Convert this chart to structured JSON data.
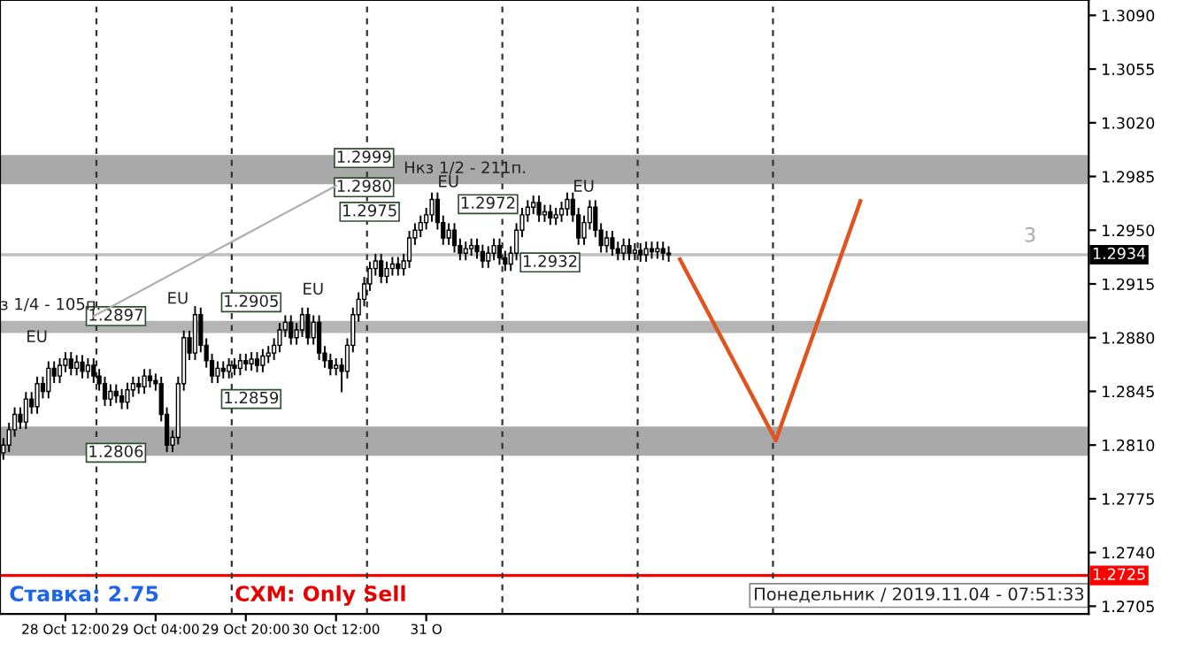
{
  "chart_data": {
    "type": "candlestick",
    "categories": [
      null,
      null,
      null,
      null,
      null,
      null,
      null,
      null,
      null,
      null,
      null,
      "28 Oct 12:00",
      null,
      null,
      null,
      null,
      null,
      null,
      null,
      null,
      null,
      null,
      null,
      null,
      null,
      null,
      null,
      "29 Oct 04:00",
      null,
      null,
      null,
      null,
      null,
      null,
      null,
      null,
      null,
      null,
      null,
      null,
      null,
      null,
      null,
      "29 Oct 20:00",
      null,
      null,
      null,
      null,
      null,
      null,
      null,
      null,
      null,
      null,
      null,
      null,
      null,
      null,
      null,
      "30 Oct 12:00",
      null,
      null,
      null,
      null,
      null,
      null,
      null,
      null,
      null,
      null,
      null,
      null,
      null,
      null,
      null,
      "31 O",
      null,
      null,
      null,
      null,
      null,
      null,
      null,
      null,
      null,
      null,
      null,
      null,
      null,
      null,
      null,
      null,
      null,
      null,
      null,
      null,
      null,
      null,
      null,
      null,
      null,
      null,
      null,
      null,
      null,
      null,
      null,
      null,
      null,
      null,
      null,
      null,
      null,
      null,
      null,
      null,
      null,
      null,
      null,
      null,
      null,
      null,
      null,
      null,
      null,
      null,
      null,
      null,
      null,
      null,
      null,
      null,
      null,
      null,
      null,
      null,
      null,
      null,
      null,
      null,
      null,
      null,
      null,
      null,
      null,
      null,
      null,
      null,
      null,
      null,
      null,
      null,
      null,
      null,
      null,
      null,
      null,
      null,
      null,
      null,
      null,
      null,
      null,
      null,
      null,
      null,
      null,
      null,
      null,
      null,
      null,
      null,
      null,
      null,
      null,
      null,
      null,
      null,
      null,
      null,
      null,
      null,
      null,
      null,
      null,
      null,
      null,
      null,
      null,
      null,
      null,
      null,
      null
    ],
    "ohlc": [
      [
        1.2805,
        1.2814,
        1.2801,
        1.281
      ],
      [
        1.281,
        1.2824,
        1.2806,
        1.282
      ],
      [
        1.282,
        1.2834,
        1.2816,
        1.283
      ],
      [
        1.283,
        1.2834,
        1.2821,
        1.2825
      ],
      [
        1.2825,
        1.2844,
        1.2821,
        1.284
      ],
      [
        1.284,
        1.2844,
        1.2831,
        1.2835
      ],
      [
        1.2835,
        1.2854,
        1.2831,
        1.285
      ],
      [
        1.285,
        1.2854,
        1.2841,
        1.2845
      ],
      [
        1.2845,
        1.2864,
        1.2841,
        1.286
      ],
      [
        1.286,
        1.2864,
        1.2851,
        1.2855
      ],
      [
        1.2855,
        1.2866,
        1.2851,
        1.2862
      ],
      [
        1.2862,
        1.287,
        1.2858,
        1.2866
      ],
      [
        1.2866,
        1.287,
        1.2856,
        1.286
      ],
      [
        1.286,
        1.2868,
        1.2856,
        1.2864
      ],
      [
        1.2864,
        1.2868,
        1.2854,
        1.2858
      ],
      [
        1.2858,
        1.2866,
        1.2854,
        1.2862
      ],
      [
        1.2862,
        1.2866,
        1.2851,
        1.2855
      ],
      [
        1.2855,
        1.2859,
        1.2846,
        1.285
      ],
      [
        1.285,
        1.2854,
        1.2836,
        1.284
      ],
      [
        1.284,
        1.2849,
        1.2836,
        1.2845
      ],
      [
        1.2845,
        1.2849,
        1.2838,
        1.2842
      ],
      [
        1.2842,
        1.2846,
        1.2834,
        1.2838
      ],
      [
        1.2838,
        1.285,
        1.2834,
        1.2846
      ],
      [
        1.2846,
        1.2854,
        1.2842,
        1.285
      ],
      [
        1.285,
        1.2854,
        1.2844,
        1.2848
      ],
      [
        1.2848,
        1.2859,
        1.2844,
        1.2855
      ],
      [
        1.2855,
        1.2859,
        1.2848,
        1.2852
      ],
      [
        1.2852,
        1.2856,
        1.2846,
        1.285
      ],
      [
        1.285,
        1.2854,
        1.2826,
        1.283
      ],
      [
        1.283,
        1.2834,
        1.2806,
        1.281
      ],
      [
        1.281,
        1.2819,
        1.2806,
        1.2815
      ],
      [
        1.2815,
        1.2854,
        1.2811,
        1.285
      ],
      [
        1.285,
        1.2884,
        1.2846,
        1.288
      ],
      [
        1.288,
        1.2884,
        1.2866,
        1.287
      ],
      [
        1.287,
        1.29,
        1.2866,
        1.2895
      ],
      [
        1.2895,
        1.2899,
        1.2871,
        1.2875
      ],
      [
        1.2875,
        1.2879,
        1.2861,
        1.2865
      ],
      [
        1.2865,
        1.2869,
        1.2851,
        1.2855
      ],
      [
        1.2855,
        1.2864,
        1.2851,
        1.286
      ],
      [
        1.286,
        1.2864,
        1.2854,
        1.2858
      ],
      [
        1.2858,
        1.2866,
        1.2854,
        1.2862
      ],
      [
        1.2862,
        1.2866,
        1.2856,
        1.286
      ],
      [
        1.286,
        1.2869,
        1.2856,
        1.2865
      ],
      [
        1.2865,
        1.2869,
        1.2859,
        1.2863
      ],
      [
        1.2863,
        1.287,
        1.2859,
        1.2866
      ],
      [
        1.2866,
        1.287,
        1.2858,
        1.2862
      ],
      [
        1.2862,
        1.2872,
        1.2858,
        1.2868
      ],
      [
        1.2868,
        1.2874,
        1.2864,
        1.287
      ],
      [
        1.287,
        1.2879,
        1.2866,
        1.2875
      ],
      [
        1.2875,
        1.2889,
        1.2871,
        1.2885
      ],
      [
        1.2885,
        1.2894,
        1.2881,
        1.289
      ],
      [
        1.289,
        1.2894,
        1.2876,
        1.288
      ],
      [
        1.288,
        1.2889,
        1.2876,
        1.2885
      ],
      [
        1.2885,
        1.2899,
        1.2881,
        1.2895
      ],
      [
        1.2895,
        1.2899,
        1.2876,
        1.288
      ],
      [
        1.288,
        1.2894,
        1.2876,
        1.289
      ],
      [
        1.289,
        1.2894,
        1.2866,
        1.287
      ],
      [
        1.287,
        1.2874,
        1.2861,
        1.2865
      ],
      [
        1.2865,
        1.2869,
        1.2856,
        1.286
      ],
      [
        1.286,
        1.2866,
        1.2856,
        1.2862
      ],
      [
        1.2862,
        1.2866,
        1.2845,
        1.2858
      ],
      [
        1.2858,
        1.2879,
        1.2854,
        1.2875
      ],
      [
        1.2875,
        1.2899,
        1.2871,
        1.2895
      ],
      [
        1.2895,
        1.2909,
        1.2891,
        1.2905
      ],
      [
        1.2905,
        1.2919,
        1.2901,
        1.2915
      ],
      [
        1.2915,
        1.2929,
        1.2911,
        1.2925
      ],
      [
        1.2925,
        1.2934,
        1.2921,
        1.293
      ],
      [
        1.293,
        1.2934,
        1.2916,
        1.292
      ],
      [
        1.292,
        1.2929,
        1.2916,
        1.2925
      ],
      [
        1.2925,
        1.2932,
        1.2921,
        1.2928
      ],
      [
        1.2928,
        1.2932,
        1.2921,
        1.2925
      ],
      [
        1.2925,
        1.2934,
        1.2921,
        1.293
      ],
      [
        1.293,
        1.2949,
        1.2926,
        1.2945
      ],
      [
        1.2945,
        1.2954,
        1.2941,
        1.295
      ],
      [
        1.295,
        1.2959,
        1.2946,
        1.2955
      ],
      [
        1.2955,
        1.2964,
        1.2951,
        1.296
      ],
      [
        1.296,
        1.2974,
        1.2956,
        1.297
      ],
      [
        1.297,
        1.2974,
        1.2951,
        1.2955
      ],
      [
        1.2955,
        1.2959,
        1.2941,
        1.2945
      ],
      [
        1.2945,
        1.2954,
        1.2941,
        1.295
      ],
      [
        1.295,
        1.2954,
        1.2936,
        1.294
      ],
      [
        1.294,
        1.2944,
        1.2931,
        1.2935
      ],
      [
        1.2935,
        1.2942,
        1.2931,
        1.2938
      ],
      [
        1.2938,
        1.2944,
        1.2934,
        1.294
      ],
      [
        1.294,
        1.2944,
        1.2932,
        1.2936
      ],
      [
        1.2936,
        1.294,
        1.2926,
        1.293
      ],
      [
        1.293,
        1.2939,
        1.2926,
        1.2935
      ],
      [
        1.2935,
        1.2944,
        1.2931,
        1.294
      ],
      [
        1.294,
        1.2944,
        1.2928,
        1.2932
      ],
      [
        1.2932,
        1.2936,
        1.2924,
        1.2928
      ],
      [
        1.2928,
        1.2939,
        1.2924,
        1.2935
      ],
      [
        1.2935,
        1.2954,
        1.2931,
        1.295
      ],
      [
        1.295,
        1.2964,
        1.2946,
        1.296
      ],
      [
        1.296,
        1.2969,
        1.2956,
        1.2965
      ],
      [
        1.2965,
        1.2972,
        1.2961,
        1.2968
      ],
      [
        1.2968,
        1.2972,
        1.2956,
        1.296
      ],
      [
        1.296,
        1.2966,
        1.2956,
        1.2962
      ],
      [
        1.2962,
        1.2966,
        1.2954,
        1.2958
      ],
      [
        1.2958,
        1.2964,
        1.2954,
        1.296
      ],
      [
        1.296,
        1.2968,
        1.2956,
        1.2964
      ],
      [
        1.2964,
        1.2974,
        1.296,
        1.297
      ],
      [
        1.297,
        1.2974,
        1.2956,
        1.296
      ],
      [
        1.296,
        1.2964,
        1.2941,
        1.2945
      ],
      [
        1.2945,
        1.2959,
        1.2941,
        1.2955
      ],
      [
        1.2955,
        1.2969,
        1.2951,
        1.2965
      ],
      [
        1.2965,
        1.2969,
        1.2946,
        1.295
      ],
      [
        1.295,
        1.2954,
        1.2936,
        1.294
      ],
      [
        1.294,
        1.2949,
        1.2936,
        1.2945
      ],
      [
        1.2945,
        1.2949,
        1.2934,
        1.2938
      ],
      [
        1.2938,
        1.2942,
        1.2931,
        1.2935
      ],
      [
        1.2935,
        1.2944,
        1.2931,
        1.294
      ],
      [
        1.294,
        1.2944,
        1.2931,
        1.2935
      ],
      [
        1.2935,
        1.2941,
        1.2931,
        1.2937
      ],
      [
        1.2937,
        1.2941,
        1.293,
        1.2934
      ],
      [
        1.2934,
        1.2942,
        1.293,
        1.2938
      ],
      [
        1.2938,
        1.2942,
        1.2932,
        1.2936
      ],
      [
        1.2936,
        1.2942,
        1.2932,
        1.2938
      ],
      [
        1.2938,
        1.2942,
        1.2931,
        1.2935
      ],
      [
        1.2935,
        1.2939,
        1.293,
        1.2934
      ],
      null,
      null,
      null,
      null,
      null,
      null,
      null,
      null,
      null,
      null,
      null,
      null,
      null,
      null,
      null,
      null,
      null,
      null,
      null,
      null,
      null,
      null,
      null,
      null,
      null,
      null,
      null,
      null,
      null,
      null,
      null,
      null,
      null,
      null,
      null,
      null,
      null,
      null,
      null,
      null,
      null,
      null,
      null,
      null,
      null,
      null,
      null,
      null,
      null,
      null,
      null,
      null,
      null,
      null,
      null,
      null,
      null,
      null,
      null,
      null,
      null,
      null,
      null,
      null,
      null,
      null,
      null,
      null,
      null,
      null,
      null,
      null,
      null,
      null
    ],
    "color": "#000000",
    "series": [
      {
        "type": "line",
        "color": "#b0b0b0",
        "values": [
          null,
          null,
          null,
          null,
          null,
          null,
          null,
          null,
          null,
          null,
          null,
          null,
          null,
          null,
          null,
          null,
          1.2894,
          null,
          null,
          null,
          null,
          null,
          null,
          null,
          null,
          null,
          null,
          null,
          null,
          null,
          null,
          null,
          null,
          null,
          null,
          null,
          null,
          null,
          null,
          null,
          null,
          null,
          null,
          null,
          null,
          null,
          null,
          null,
          null,
          null,
          null,
          null,
          null,
          null,
          null,
          null,
          null,
          null,
          null,
          1.2979,
          null,
          null,
          null,
          null,
          null,
          null,
          null,
          null,
          null,
          null,
          null,
          null,
          null,
          null,
          null,
          null,
          null,
          null,
          null,
          null,
          null,
          null,
          null,
          null,
          null,
          null,
          null,
          null,
          null,
          null,
          null,
          null,
          null,
          null,
          null,
          null,
          null,
          null,
          null,
          null,
          null,
          null,
          null,
          null,
          null,
          null,
          null,
          null,
          null,
          null,
          null,
          null,
          null,
          null,
          null,
          null,
          null,
          null,
          null,
          null,
          null,
          null,
          null,
          null,
          null,
          null,
          null,
          null,
          null,
          null,
          null,
          null,
          null,
          null,
          null,
          null,
          null,
          null,
          null,
          null,
          null,
          null,
          null,
          null,
          null,
          null,
          null,
          null,
          null,
          null,
          null,
          null,
          null,
          null,
          null,
          null,
          null,
          null,
          null,
          null,
          null,
          null,
          null,
          null,
          null,
          null,
          null,
          null,
          null,
          null,
          null,
          null,
          null,
          null,
          null,
          null,
          null,
          null,
          null,
          null,
          null,
          null,
          null,
          null,
          null,
          null,
          null,
          null,
          null,
          null,
          null,
          null,
          null
        ]
      },
      {
        "type": "line",
        "color": "#e0531f",
        "values": [
          null,
          null,
          null,
          null,
          null,
          null,
          null,
          null,
          null,
          null,
          null,
          null,
          null,
          null,
          null,
          null,
          null,
          null,
          null,
          null,
          null,
          null,
          null,
          null,
          null,
          null,
          null,
          null,
          null,
          null,
          null,
          null,
          null,
          null,
          null,
          null,
          null,
          null,
          null,
          null,
          null,
          null,
          null,
          null,
          null,
          null,
          null,
          null,
          null,
          null,
          null,
          null,
          null,
          null,
          null,
          null,
          null,
          null,
          null,
          null,
          null,
          null,
          null,
          null,
          null,
          null,
          null,
          null,
          null,
          null,
          null,
          null,
          null,
          null,
          null,
          null,
          null,
          null,
          null,
          null,
          null,
          null,
          null,
          null,
          null,
          null,
          null,
          null,
          null,
          null,
          null,
          null,
          null,
          null,
          null,
          null,
          null,
          null,
          null,
          null,
          null,
          null,
          null,
          null,
          null,
          null,
          null,
          null,
          null,
          null,
          null,
          null,
          null,
          null,
          null,
          null,
          null,
          null,
          null,
          null,
          1.2931,
          null,
          null,
          null,
          null,
          null,
          null,
          null,
          null,
          null,
          null,
          null,
          null,
          null,
          null,
          null,
          null,
          1.2813,
          null,
          null,
          null,
          null,
          null,
          null,
          null,
          null,
          null,
          null,
          null,
          null,
          null,
          null,
          1.2969,
          null,
          null,
          null,
          null,
          null,
          null,
          null,
          null,
          null,
          null,
          null,
          null,
          null,
          null,
          null,
          null,
          null,
          null,
          null,
          null,
          null,
          null,
          null,
          null,
          null,
          null,
          null,
          null,
          null,
          null,
          null,
          null,
          null,
          null,
          null,
          null,
          null,
          null,
          null,
          null
        ]
      }
    ],
    "ylim": [
      1.27,
      1.31
    ],
    "yticks": [
      1.2705,
      {
        "value": 1.274,
        "label": "1.2740"
      },
      1.2775,
      {
        "value": 1.281,
        "label": "1.2810"
      },
      1.2845,
      {
        "value": 1.288,
        "label": "1.2880"
      },
      1.2915,
      {
        "value": 1.295,
        "label": "1.2950"
      },
      1.2985,
      {
        "value": 1.302,
        "label": "1.3020"
      },
      1.3055,
      {
        "value": 1.309,
        "label": "1.3090"
      }
    ],
    "bands": [
      {
        "axis": "y",
        "from": 1.298,
        "to": 1.2999,
        "color": "#a9a9a9"
      },
      {
        "axis": "y",
        "from": 1.2883,
        "to": 1.2891,
        "color": "#b4b4b4"
      },
      {
        "axis": "y",
        "from": 1.2803,
        "to": 1.2822,
        "color": "#a9a9a9"
      }
    ],
    "ref_lines": [
      {
        "axis": "y",
        "value": 1.2725,
        "label": "1.2725",
        "color": "#ff0000"
      },
      {
        "axis": "y",
        "value": 1.2934,
        "label": "1.2934",
        "color": "#c0c0c0"
      }
    ],
    "annotations": [
      "1.2999",
      "1.2980",
      "1.2975",
      "1.2972",
      "1.2932",
      "1.2905",
      "1.2897",
      "1.2859",
      "1.2806",
      "EU",
      "EU",
      "EU",
      "EU",
      "EU",
      "Нкз 1/2 - 211п.",
      "з 1/4 - 105п.",
      "3",
      "Ставка: 2.75",
      "СХМ: Only Sell",
      "Понедельник / 2019.11.04 - 07:51:33"
    ]
  }
}
